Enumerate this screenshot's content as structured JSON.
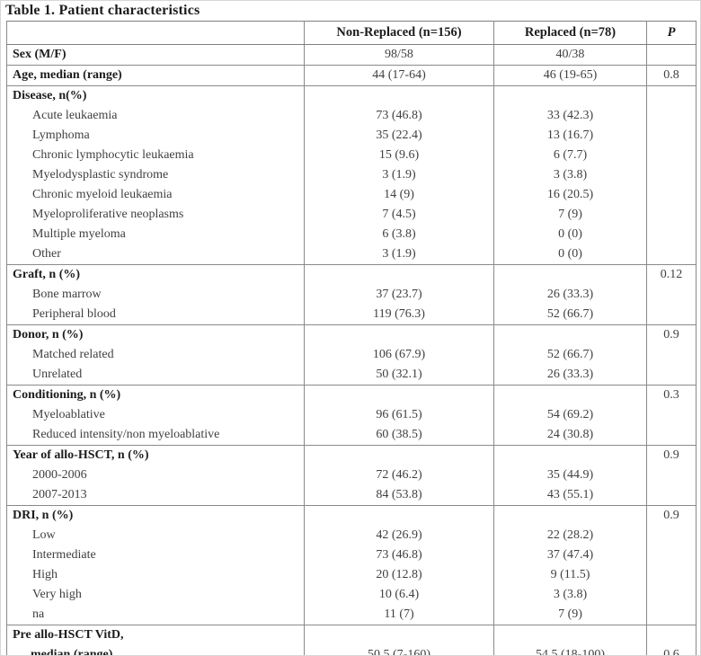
{
  "title": "Table 1. Patient characteristics",
  "table": {
    "columns": [
      "",
      "Non-Replaced (n=156)",
      "Replaced (n=78)",
      "P"
    ],
    "rows": [
      {
        "label": "Sex (M/F)",
        "bold": true,
        "indent": false,
        "sep": true,
        "c1": "98/58",
        "c2": "40/38",
        "p": ""
      },
      {
        "label": "Age, median (range)",
        "bold": true,
        "indent": false,
        "sep": true,
        "c1": "44 (17-64)",
        "c2": "46 (19-65)",
        "p": "0.8"
      },
      {
        "label": "Disease, n(%)",
        "bold": true,
        "indent": false,
        "sep": true,
        "c1": "",
        "c2": "",
        "p": ""
      },
      {
        "label": "Acute leukaemia",
        "bold": false,
        "indent": true,
        "sep": false,
        "c1": "73 (46.8)",
        "c2": "33 (42.3)",
        "p": ""
      },
      {
        "label": "Lymphoma",
        "bold": false,
        "indent": true,
        "sep": false,
        "c1": "35 (22.4)",
        "c2": "13 (16.7)",
        "p": ""
      },
      {
        "label": "Chronic lymphocytic leukaemia",
        "bold": false,
        "indent": true,
        "sep": false,
        "c1": "15 (9.6)",
        "c2": "6 (7.7)",
        "p": ""
      },
      {
        "label": "Myelodysplastic syndrome",
        "bold": false,
        "indent": true,
        "sep": false,
        "c1": "3 (1.9)",
        "c2": "3 (3.8)",
        "p": ""
      },
      {
        "label": "Chronic myeloid leukaemia",
        "bold": false,
        "indent": true,
        "sep": false,
        "c1": "14 (9)",
        "c2": "16 (20.5)",
        "p": ""
      },
      {
        "label": "Myeloproliferative neoplasms",
        "bold": false,
        "indent": true,
        "sep": false,
        "c1": "7 (4.5)",
        "c2": "7 (9)",
        "p": ""
      },
      {
        "label": "Multiple myeloma",
        "bold": false,
        "indent": true,
        "sep": false,
        "c1": "6 (3.8)",
        "c2": "0 (0)",
        "p": ""
      },
      {
        "label": "Other",
        "bold": false,
        "indent": true,
        "sep": false,
        "c1": "3 (1.9)",
        "c2": "0 (0)",
        "p": ""
      },
      {
        "label": "Graft, n (%)",
        "bold": true,
        "indent": false,
        "sep": true,
        "c1": "",
        "c2": "",
        "p": "0.12"
      },
      {
        "label": "Bone marrow",
        "bold": false,
        "indent": true,
        "sep": false,
        "c1": "37 (23.7)",
        "c2": "26 (33.3)",
        "p": ""
      },
      {
        "label": "Peripheral blood",
        "bold": false,
        "indent": true,
        "sep": false,
        "c1": "119 (76.3)",
        "c2": "52 (66.7)",
        "p": ""
      },
      {
        "label": "Donor, n (%)",
        "bold": true,
        "indent": false,
        "sep": true,
        "c1": "",
        "c2": "",
        "p": "0.9"
      },
      {
        "label": "Matched related",
        "bold": false,
        "indent": true,
        "sep": false,
        "c1": "106 (67.9)",
        "c2": "52 (66.7)",
        "p": ""
      },
      {
        "label": "Unrelated",
        "bold": false,
        "indent": true,
        "sep": false,
        "c1": "50 (32.1)",
        "c2": "26 (33.3)",
        "p": ""
      },
      {
        "label": "Conditioning, n (%)",
        "bold": true,
        "indent": false,
        "sep": true,
        "c1": "",
        "c2": "",
        "p": "0.3"
      },
      {
        "label": "Myeloablative",
        "bold": false,
        "indent": true,
        "sep": false,
        "c1": "96 (61.5)",
        "c2": "54 (69.2)",
        "p": ""
      },
      {
        "label": "Reduced intensity/non myeloablative",
        "bold": false,
        "indent": true,
        "sep": false,
        "c1": "60 (38.5)",
        "c2": "24 (30.8)",
        "p": ""
      },
      {
        "label": "Year of allo-HSCT, n (%)",
        "bold": true,
        "indent": false,
        "sep": true,
        "c1": "",
        "c2": "",
        "p": "0.9"
      },
      {
        "label": "2000-2006",
        "bold": false,
        "indent": true,
        "sep": false,
        "c1": "72 (46.2)",
        "c2": "35 (44.9)",
        "p": ""
      },
      {
        "label": "2007-2013",
        "bold": false,
        "indent": true,
        "sep": false,
        "c1": "84 (53.8)",
        "c2": "43 (55.1)",
        "p": ""
      },
      {
        "label": "DRI, n (%)",
        "bold": true,
        "indent": false,
        "sep": true,
        "c1": "",
        "c2": "",
        "p": "0.9"
      },
      {
        "label": "Low",
        "bold": false,
        "indent": true,
        "sep": false,
        "c1": "42 (26.9)",
        "c2": "22 (28.2)",
        "p": ""
      },
      {
        "label": "Intermediate",
        "bold": false,
        "indent": true,
        "sep": false,
        "c1": "73 (46.8)",
        "c2": "37 (47.4)",
        "p": ""
      },
      {
        "label": "High",
        "bold": false,
        "indent": true,
        "sep": false,
        "c1": "20 (12.8)",
        "c2": "9 (11.5)",
        "p": ""
      },
      {
        "label": "Very high",
        "bold": false,
        "indent": true,
        "sep": false,
        "c1": "10 (6.4)",
        "c2": "3 (3.8)",
        "p": ""
      },
      {
        "label": "na",
        "bold": false,
        "indent": true,
        "sep": false,
        "c1": "11 (7)",
        "c2": "7 (9)",
        "p": ""
      },
      {
        "label": "Pre allo-HSCT VitD,",
        "label2": "median (range)",
        "bold": true,
        "indent": false,
        "sep": true,
        "tall": true,
        "c1": "50.5 (7-160)",
        "c2": "54.5 (18-100)",
        "p": "0.6"
      }
    ]
  }
}
